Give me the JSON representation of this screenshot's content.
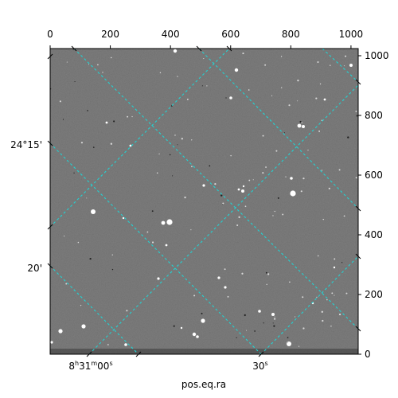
{
  "figure": {
    "pixel_axis": {
      "x_ticks": [
        "0",
        "200",
        "400",
        "600",
        "800",
        "1000"
      ],
      "x_tick_values": [
        0,
        200,
        400,
        600,
        800,
        1000
      ],
      "x_range": [
        0,
        1024
      ],
      "y_ticks": [
        "0",
        "200",
        "400",
        "600",
        "800",
        "1000"
      ],
      "y_tick_values": [
        0,
        200,
        400,
        600,
        800,
        1000
      ],
      "y_range": [
        0,
        1024
      ]
    },
    "world_axis": {
      "ra_labels": [
        "8h31m00s",
        "30s"
      ],
      "dec_labels": [
        "24°15'",
        "20'"
      ],
      "xlabel": "pos.eq.ra"
    },
    "grid_color": "#22d3d3",
    "image_tone": "#7a7a7a"
  }
}
